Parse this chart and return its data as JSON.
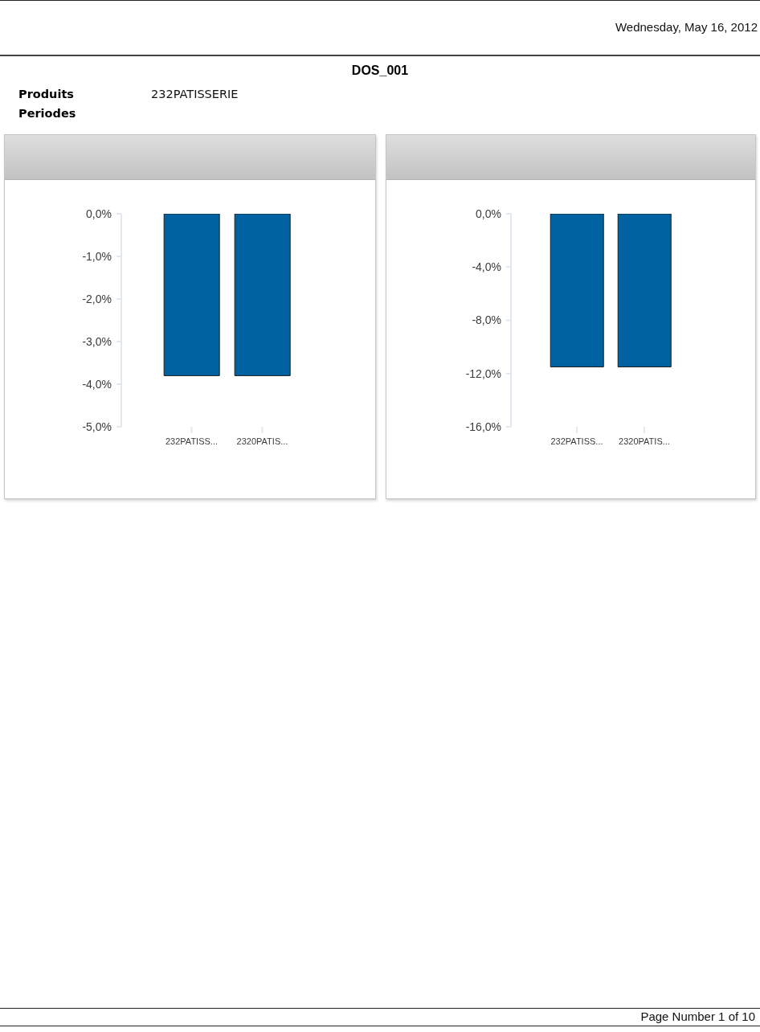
{
  "chart_data": [
    {
      "type": "other",
      "title": "DOS_001",
      "annotations": [
        "Wednesday, May 16, 2012",
        "Produits",
        "232PATISSERIE",
        "Periodes"
      ]
    },
    {
      "type": "bar",
      "categories": [
        "232PATISS...",
        "2320PATIS..."
      ],
      "values": [
        -3.8,
        -3.8
      ],
      "color": "#0062a0",
      "ylim": [
        -5,
        0
      ],
      "yticks": [
        {
          "value": 0,
          "label": "0,0%"
        },
        {
          "value": -1,
          "label": "-1,0%"
        },
        {
          "value": -2,
          "label": "-2,0%"
        },
        {
          "value": -3,
          "label": "-3,0%"
        },
        {
          "value": -4,
          "label": "-4,0%"
        },
        {
          "value": -5,
          "label": "-5,0%"
        }
      ]
    },
    {
      "type": "bar",
      "categories": [
        "232PATISS...",
        "2320PATIS..."
      ],
      "values": [
        -11.5,
        -11.5
      ],
      "color": "#0062a0",
      "ylim": [
        -16,
        0
      ],
      "yticks": [
        {
          "value": 0,
          "label": "0,0%"
        },
        {
          "value": -4,
          "label": "-4,0%"
        },
        {
          "value": -8,
          "label": "-8,0%"
        },
        {
          "value": -12,
          "label": "-12,0%"
        },
        {
          "value": -16,
          "label": "-16,0%"
        }
      ]
    },
    {
      "type": "other",
      "annotations": [
        "Page Number 1 of 10"
      ]
    }
  ]
}
